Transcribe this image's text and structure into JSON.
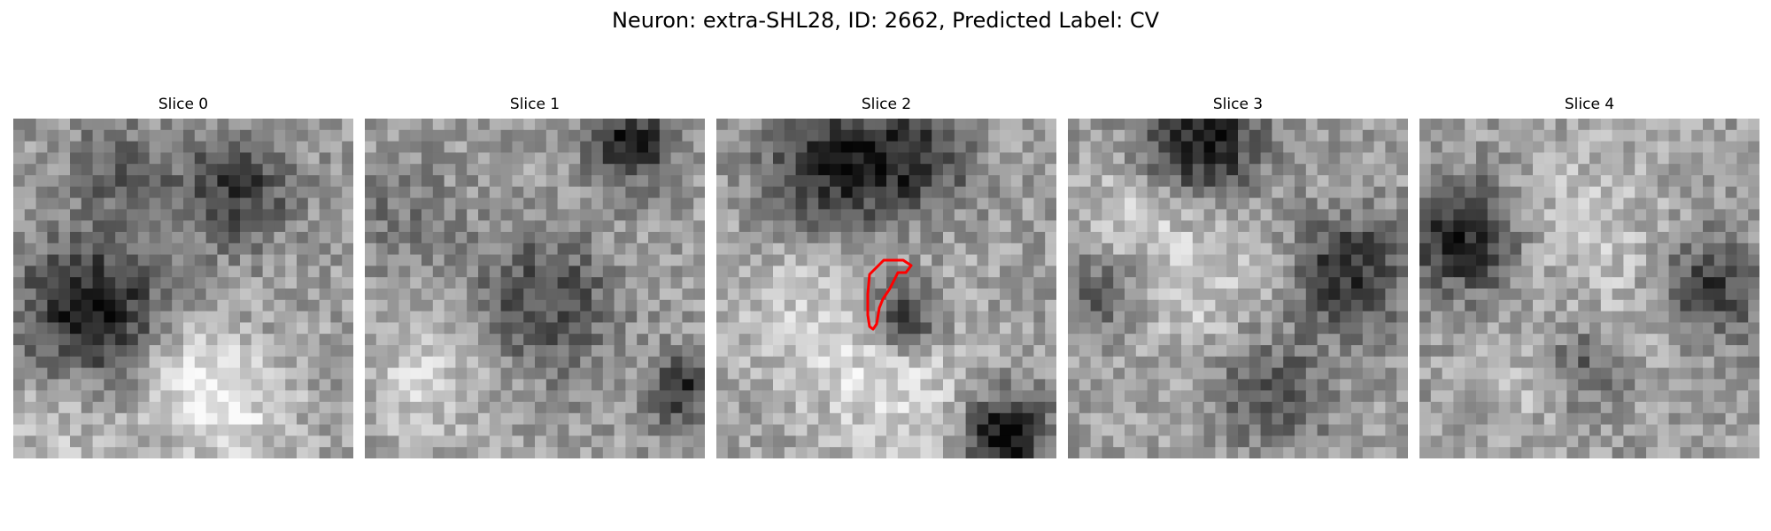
{
  "figure": {
    "title": "Neuron: extra-SHL28, ID: 2662, Predicted Label: CV"
  },
  "panels": [
    {
      "title": "Slice 0"
    },
    {
      "title": "Slice 1"
    },
    {
      "title": "Slice 2"
    },
    {
      "title": "Slice 3"
    },
    {
      "title": "Slice 4"
    }
  ],
  "colors": {
    "background": "#ffffff",
    "text": "#000000",
    "contour": "#ff0000"
  }
}
